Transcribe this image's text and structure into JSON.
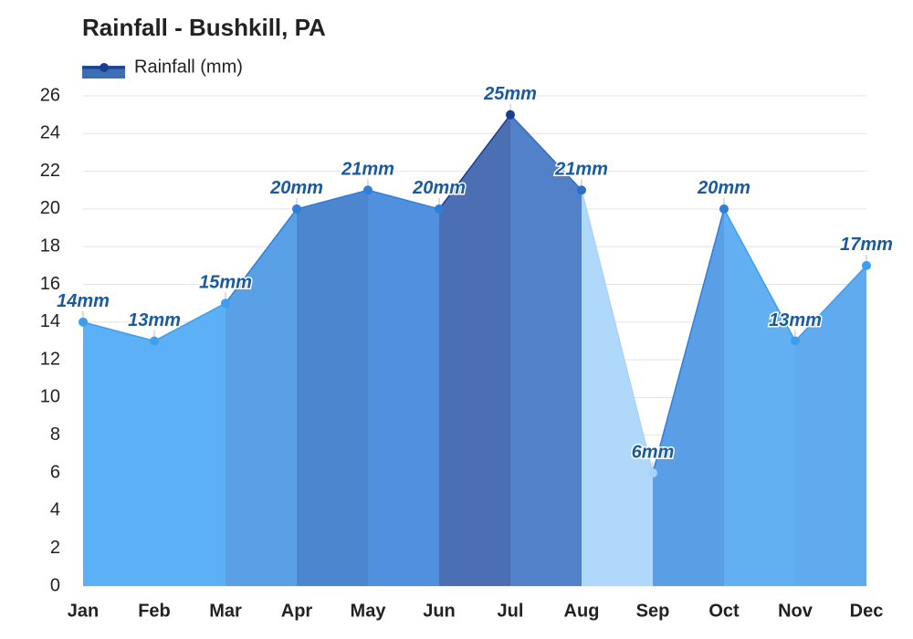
{
  "chart_data": {
    "type": "area",
    "title": "Rainfall - Bushkill, PA",
    "categories": [
      "Jan",
      "Feb",
      "Mar",
      "Apr",
      "May",
      "Jun",
      "Jul",
      "Aug",
      "Sep",
      "Oct",
      "Nov",
      "Dec"
    ],
    "series": [
      {
        "name": "Rainfall (mm)",
        "color": "#3d6db5",
        "values": [
          14,
          13,
          15,
          20,
          21,
          20,
          25,
          21,
          6,
          20,
          13,
          17
        ],
        "value_labels": [
          "14mm",
          "13mm",
          "15mm",
          "20mm",
          "21mm",
          "20mm",
          "25mm",
          "21mm",
          "6mm",
          "20mm",
          "13mm",
          "17mm"
        ],
        "segment_colors": [
          "#5cb0f5",
          "#5cb0f5",
          "#5aa0e6",
          "#4c86cf",
          "#5190de",
          "#4c6fb4",
          "#5280c9",
          "#b0d8fb",
          "#5a9fe6",
          "#62b0f1",
          "#62aaee"
        ],
        "point_colors": [
          "#3c9eef",
          "#3c9eef",
          "#3c9eef",
          "#2f7fd9",
          "#2f7fd9",
          "#2f7fd9",
          "#1a3f8f",
          "#2e6ec7",
          "#a8d2fa",
          "#2f7fd9",
          "#3c9eef",
          "#3c9eef"
        ]
      }
    ],
    "ylim": [
      0,
      26
    ],
    "yticks": [
      0,
      2,
      4,
      6,
      8,
      10,
      12,
      14,
      16,
      18,
      20,
      22,
      24,
      26
    ],
    "grid": true
  }
}
